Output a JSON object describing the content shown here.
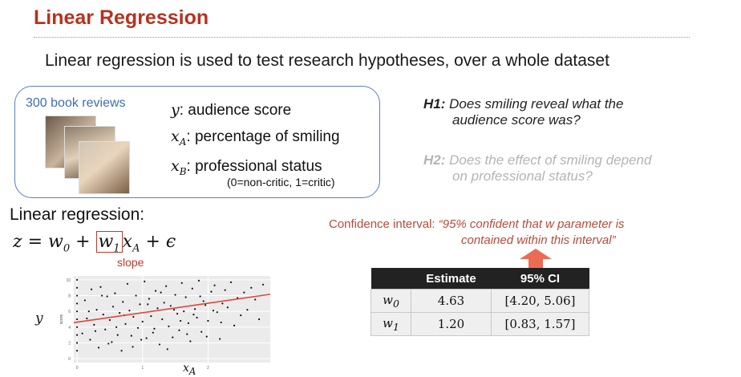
{
  "slide": {
    "title": "Linear Regression",
    "subtitle": "Linear regression is used to test research hypotheses, over a whole dataset",
    "dataset_label": "300 book reviews",
    "variables": [
      {
        "symbol": "y",
        "sub": "",
        "desc": ": audience score"
      },
      {
        "symbol": "x",
        "sub": "A",
        "desc": ": percentage of smiling"
      },
      {
        "symbol": "x",
        "sub": "B",
        "desc": ": professional status"
      }
    ],
    "status_note": "(0=non-critic, 1=critic)",
    "hypotheses": [
      {
        "label": "H1:",
        "line1": "Does smiling reveal what the",
        "line2": "audience score was?"
      },
      {
        "label": "H2:",
        "line1": "Does the effect of smiling depend",
        "line2": "on professional status?"
      }
    ],
    "regression_heading": "Linear regression:",
    "equation": {
      "lhs": "z = w",
      "w0_sub": "0",
      "plus": " + ",
      "w1": "w",
      "w1_sub": "1",
      "xA": "x",
      "xA_sub": "A",
      "eps": " + ϵ"
    },
    "slope_label": "slope",
    "y_symbol": "y",
    "x_symbol": "x",
    "x_symbol_sub": "A",
    "ci_label": "Confidence interval:",
    "ci_quote_line1": "“95% confident that w parameter is",
    "ci_quote_line2": "contained within this interval”",
    "table": {
      "headers": [
        "",
        "Estimate",
        "95% CI"
      ],
      "rows": [
        {
          "param": "w",
          "sub": "0",
          "estimate": "4.63",
          "ci": "[4.20, 5.06]"
        },
        {
          "param": "w",
          "sub": "1",
          "estimate": "1.20",
          "ci": "[0.83, 1.57]"
        }
      ]
    },
    "colors": {
      "title": "#b8321e",
      "box_border": "#5a7fc0",
      "regression_line": "#e0453a",
      "h2": "#b4b4b4"
    }
  },
  "chart_data": {
    "type": "scatter",
    "ylabel": "score",
    "xlabel": "",
    "y_ticks": [
      "0",
      "2",
      "4",
      "6",
      "8",
      "10"
    ],
    "x_ticks": [
      "0",
      "1",
      "2"
    ],
    "xlim": [
      -0.05,
      2.95
    ],
    "ylim": [
      -0.5,
      10.5
    ],
    "grid": true,
    "fit_line": {
      "intercept": 4.63,
      "slope": 1.2
    },
    "points": [
      [
        0.0,
        1
      ],
      [
        0.0,
        2
      ],
      [
        0.0,
        3
      ],
      [
        0.0,
        4
      ],
      [
        0.0,
        5
      ],
      [
        0.0,
        6
      ],
      [
        0.0,
        7
      ],
      [
        0.0,
        8
      ],
      [
        0.0,
        9
      ],
      [
        0.0,
        10
      ],
      [
        0.08,
        3.2
      ],
      [
        0.12,
        7.4
      ],
      [
        0.15,
        5.1
      ],
      [
        0.2,
        2.4
      ],
      [
        0.22,
        8.8
      ],
      [
        0.26,
        4.3
      ],
      [
        0.3,
        6.2
      ],
      [
        0.33,
        1.4
      ],
      [
        0.36,
        9.1
      ],
      [
        0.4,
        5.6
      ],
      [
        0.43,
        3.7
      ],
      [
        0.46,
        7.9
      ],
      [
        0.5,
        4.9
      ],
      [
        0.53,
        2.1
      ],
      [
        0.55,
        6.6
      ],
      [
        0.58,
        8.3
      ],
      [
        0.62,
        3.0
      ],
      [
        0.65,
        5.8
      ],
      [
        0.68,
        1.0
      ],
      [
        0.7,
        7.2
      ],
      [
        0.74,
        4.4
      ],
      [
        0.77,
        9.5
      ],
      [
        0.8,
        6.1
      ],
      [
        0.83,
        2.9
      ],
      [
        0.86,
        5.3
      ],
      [
        0.9,
        8.0
      ],
      [
        0.93,
        3.9
      ],
      [
        0.96,
        6.9
      ],
      [
        1.0,
        4.7
      ],
      [
        1.03,
        9.8
      ],
      [
        1.06,
        2.6
      ],
      [
        1.1,
        7.6
      ],
      [
        1.13,
        5.4
      ],
      [
        1.16,
        3.3
      ],
      [
        1.2,
        8.6
      ],
      [
        1.23,
        6.4
      ],
      [
        1.26,
        1.8
      ],
      [
        1.3,
        5.0
      ],
      [
        1.33,
        7.1
      ],
      [
        1.36,
        9.2
      ],
      [
        1.4,
        4.1
      ],
      [
        1.43,
        6.7
      ],
      [
        1.46,
        2.7
      ],
      [
        1.5,
        8.1
      ],
      [
        1.53,
        5.7
      ],
      [
        1.56,
        3.6
      ],
      [
        1.6,
        9.6
      ],
      [
        1.63,
        6.0
      ],
      [
        1.66,
        7.8
      ],
      [
        1.7,
        4.5
      ],
      [
        1.73,
        2.2
      ],
      [
        1.76,
        8.9
      ],
      [
        1.8,
        6.3
      ],
      [
        1.83,
        5.2
      ],
      [
        1.86,
        9.9
      ],
      [
        1.9,
        3.4
      ],
      [
        1.93,
        7.3
      ],
      [
        1.96,
        6.8
      ],
      [
        2.0,
        4.8
      ],
      [
        2.05,
        8.5
      ],
      [
        2.1,
        9.3
      ],
      [
        2.14,
        5.9
      ],
      [
        2.18,
        2.5
      ],
      [
        2.22,
        7.0
      ],
      [
        2.26,
        8.7
      ],
      [
        2.3,
        6.5
      ],
      [
        2.35,
        9.7
      ],
      [
        2.4,
        4.2
      ],
      [
        2.45,
        7.7
      ],
      [
        2.5,
        5.5
      ],
      [
        2.55,
        8.4
      ],
      [
        2.6,
        6.2
      ],
      [
        2.66,
        9.0
      ],
      [
        2.72,
        7.5
      ],
      [
        2.78,
        5.0
      ],
      [
        2.84,
        9.4
      ],
      [
        0.18,
        6.0
      ],
      [
        0.28,
        3.5
      ],
      [
        0.38,
        8.0
      ],
      [
        0.48,
        1.9
      ],
      [
        0.6,
        4.0
      ],
      [
        0.72,
        5.5
      ],
      [
        0.85,
        1.5
      ],
      [
        0.98,
        2.4
      ],
      [
        1.08,
        6.9
      ],
      [
        1.18,
        3.8
      ],
      [
        1.28,
        8.4
      ],
      [
        1.38,
        1.2
      ],
      [
        1.48,
        6.2
      ],
      [
        1.58,
        4.8
      ],
      [
        1.68,
        3.1
      ],
      [
        1.78,
        5.6
      ],
      [
        1.88,
        7.9
      ],
      [
        1.98,
        2.8
      ],
      [
        2.08,
        6.1
      ],
      [
        2.2,
        4.6
      ]
    ]
  }
}
